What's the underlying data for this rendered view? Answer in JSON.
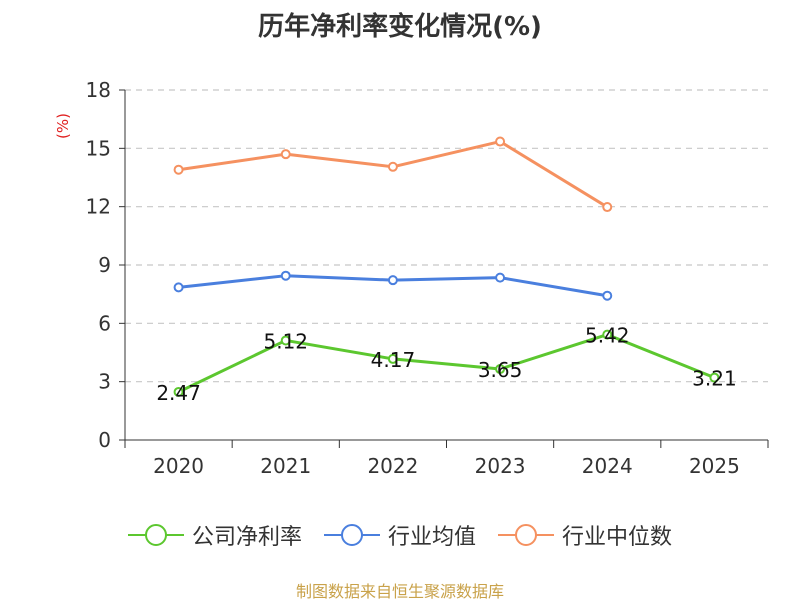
{
  "chart_data": {
    "type": "line",
    "title": "历年净利率变化情况(%)",
    "ylabel": "(%)",
    "xlabel": "",
    "categories": [
      "2020",
      "2021",
      "2022",
      "2023",
      "2024",
      "2025"
    ],
    "ylim": [
      0,
      18
    ],
    "yticks": [
      "0",
      "3",
      "6",
      "9",
      "12",
      "15",
      "18"
    ],
    "grid": true,
    "legend_position": "bottom",
    "series": [
      {
        "name": "公司净利率",
        "color": "#5cc72f",
        "values": [
          2.47,
          5.12,
          4.17,
          3.65,
          5.42,
          3.21
        ],
        "labels": [
          "2.47",
          "5.12",
          "4.17",
          "3.65",
          "5.42",
          "3.21"
        ]
      },
      {
        "name": "行业均值",
        "color": "#4a7fde",
        "values": [
          7.85,
          8.45,
          8.22,
          8.35,
          7.42,
          null
        ]
      },
      {
        "name": "行业中位数",
        "color": "#f59160",
        "values": [
          13.9,
          14.7,
          14.05,
          15.35,
          11.98,
          null
        ]
      }
    ]
  },
  "source": "制图数据来自恒生聚源数据库"
}
